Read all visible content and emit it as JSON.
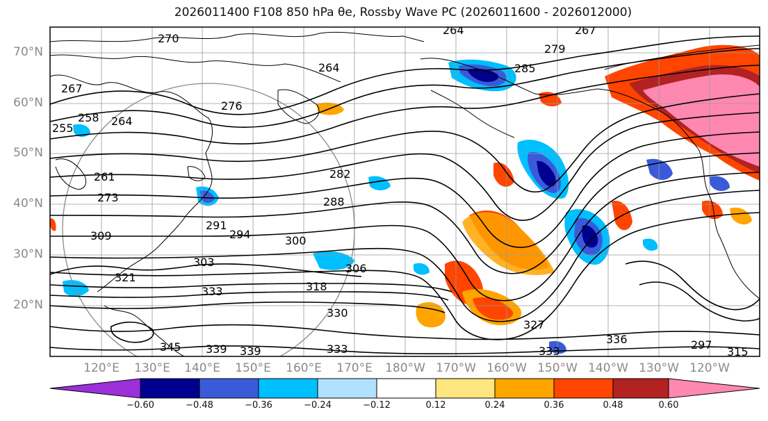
{
  "title": "2026011400 F108 850 hPa θe, Rossby Wave PC (2026011600 - 2026012000)",
  "map": {
    "lat_labels": [
      "70°N",
      "60°N",
      "50°N",
      "40°N",
      "30°N",
      "20°N"
    ],
    "lon_labels": [
      "120°E",
      "130°E",
      "140°E",
      "150°E",
      "160°E",
      "170°E",
      "180°W",
      "170°W",
      "160°W",
      "150°W",
      "140°W",
      "130°W",
      "120°W"
    ],
    "contour_labels": [
      "270",
      "264",
      "267",
      "279",
      "285",
      "264",
      "267",
      "276",
      "258",
      "264",
      "255",
      "261",
      "273",
      "282",
      "288",
      "291",
      "294",
      "300",
      "309",
      "303",
      "306",
      "321",
      "318",
      "330",
      "333",
      "327",
      "345",
      "339",
      "339",
      "333",
      "333",
      "336",
      "297",
      "315"
    ],
    "colors": {
      "land_outline": "#000000",
      "grid": "#9a9a9a"
    }
  },
  "colorbar": {
    "tick_labels": [
      "−0.60",
      "−0.48",
      "−0.36",
      "−0.24",
      "−0.12",
      "0.12",
      "0.24",
      "0.36",
      "0.48",
      "0.60"
    ],
    "colors": [
      "#9b30d9",
      "#000090",
      "#3a5bd9",
      "#00bfff",
      "#b0e2ff",
      "#ffffff",
      "#ffe680",
      "#ffa500",
      "#ff4500",
      "#b22222",
      "#ff88b0"
    ]
  }
}
